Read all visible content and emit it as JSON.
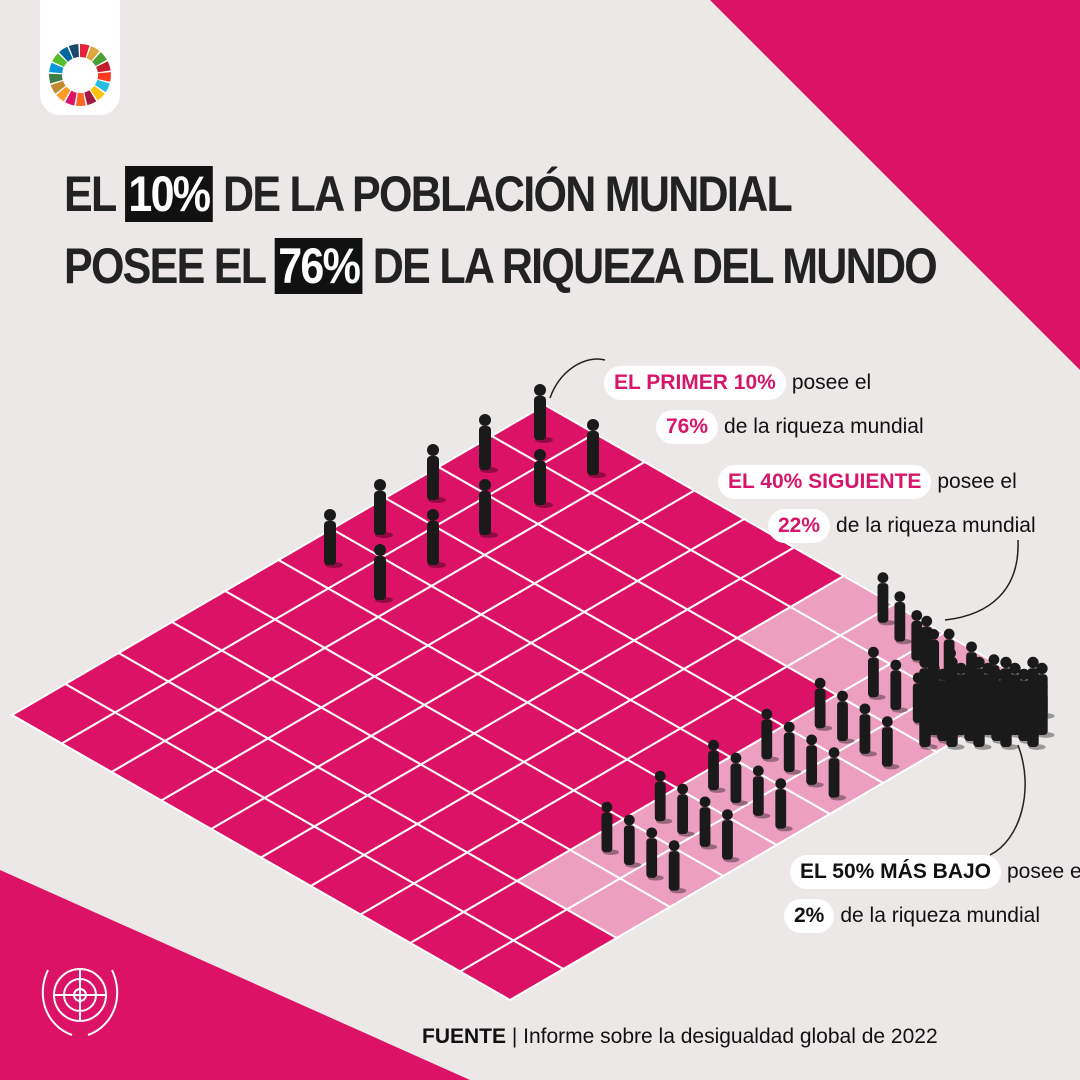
{
  "header": {
    "title": {
      "line1": {
        "before": "EL",
        "highlight": "10%",
        "after": "DE LA POBLACIÓN MUNDIAL"
      },
      "line2": {
        "before": "POSEE EL",
        "highlight": "76%",
        "after": "DE LA RIQUEZA DEL MUNDO"
      }
    }
  },
  "callouts": [
    {
      "group": "EL PRIMER 10%",
      "verb": "posee el",
      "share": "76%",
      "rest": "de la riqueza mundial"
    },
    {
      "group": "EL 40% SIGUIENTE",
      "verb": "posee el",
      "share": "22%",
      "rest": "de la riqueza mundial"
    },
    {
      "group": "EL 50% MÁS BAJO",
      "verb": "posee el",
      "share": "2%",
      "rest": "de la riqueza mundial"
    }
  ],
  "source": {
    "label": "FUENTE",
    "separator": "|",
    "text": "Informe sobre la desigualdad global de 2022"
  }
}
